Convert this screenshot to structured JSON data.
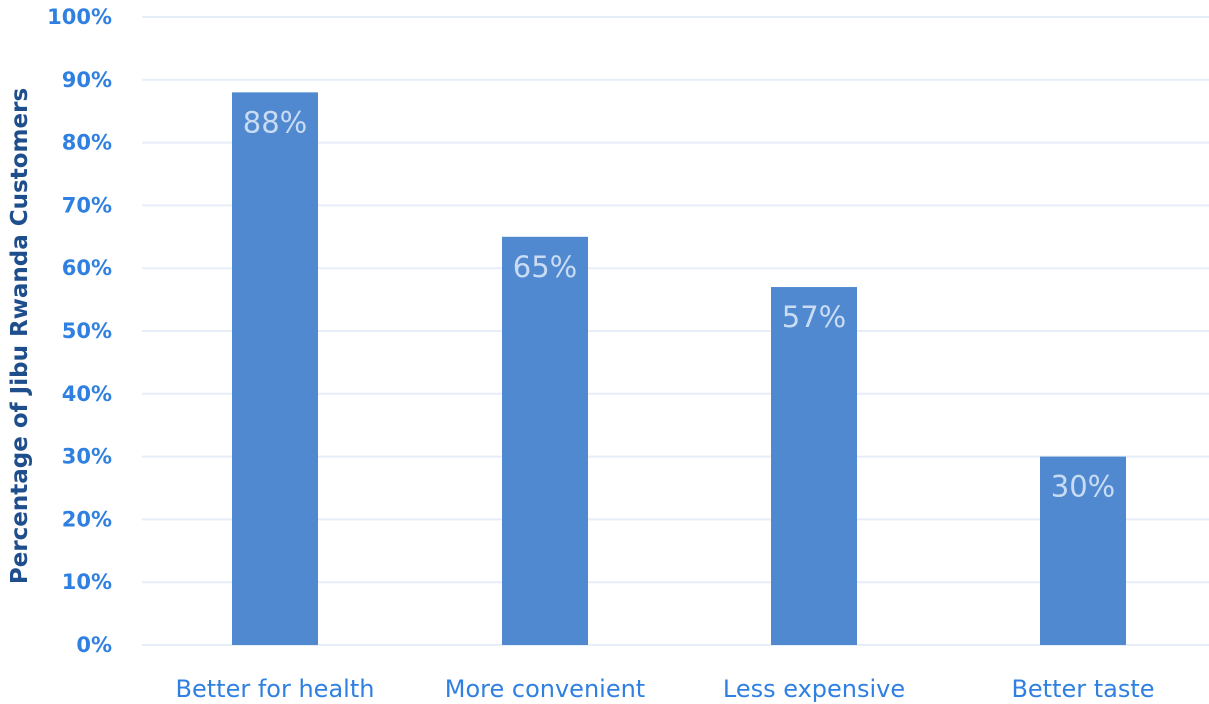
{
  "chart_data": {
    "type": "bar",
    "title": "",
    "xlabel": "",
    "ylabel": "Percentage of Jibu Rwanda Customers",
    "categories": [
      "Better for health",
      "More convenient",
      "Less expensive",
      "Better taste"
    ],
    "values": [
      88,
      65,
      57,
      30
    ],
    "data_labels": [
      "88%",
      "65%",
      "57%",
      "30%"
    ],
    "ylim": [
      0,
      100
    ],
    "yticks": [
      "0%",
      "10%",
      "20%",
      "30%",
      "40%",
      "50%",
      "60%",
      "70%",
      "80%",
      "90%",
      "100%"
    ],
    "grid": true,
    "legend": "none",
    "colors": {
      "bar": "#5089d0",
      "grid": "#e6eef7",
      "tick_text": "#2f80e0",
      "axis_label": "#1f4e8c",
      "category_text": "#2f80e0",
      "data_label": "#c9dcf3"
    }
  }
}
